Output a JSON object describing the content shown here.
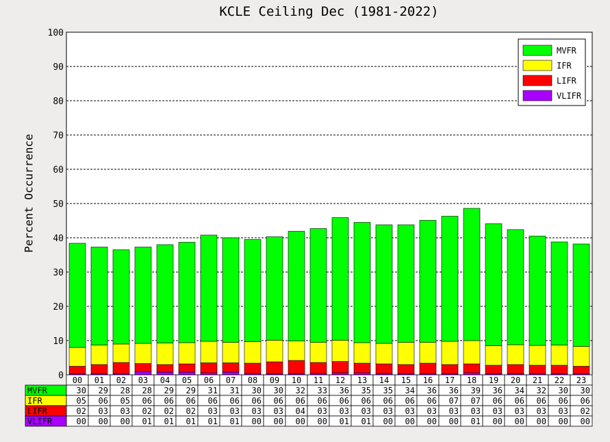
{
  "chart_data": {
    "type": "bar",
    "stacked": true,
    "title": "KCLE Ceiling Dec (1981-2022)",
    "xlabel": "",
    "ylabel": "Percent Occurrence",
    "ylim": [
      0,
      100
    ],
    "yticks": [
      0,
      10,
      20,
      30,
      40,
      50,
      60,
      70,
      80,
      90,
      100
    ],
    "grid": true,
    "legend_position": "top-right",
    "categories": [
      "00",
      "01",
      "02",
      "03",
      "04",
      "05",
      "06",
      "07",
      "08",
      "09",
      "10",
      "11",
      "12",
      "13",
      "14",
      "15",
      "16",
      "17",
      "18",
      "19",
      "20",
      "21",
      "22",
      "23"
    ],
    "series": [
      {
        "name": "VLIFR",
        "color": "#aa00ff",
        "values": [
          0.3,
          0.3,
          0.3,
          0.9,
          0.8,
          0.8,
          0.6,
          0.8,
          0.4,
          0.3,
          0.3,
          0.4,
          0.6,
          0.6,
          0.4,
          0.3,
          0.3,
          0.3,
          0.6,
          0.3,
          0.3,
          0.3,
          0.3,
          0.3
        ],
        "labels": [
          "00",
          "00",
          "00",
          "01",
          "01",
          "01",
          "01",
          "01",
          "00",
          "00",
          "00",
          "00",
          "01",
          "01",
          "00",
          "00",
          "00",
          "00",
          "01",
          "00",
          "00",
          "00",
          "00",
          "00"
        ]
      },
      {
        "name": "LIFR",
        "color": "#ff0000",
        "values": [
          2.2,
          2.7,
          3.3,
          2.4,
          2.2,
          2.4,
          2.9,
          2.7,
          3.0,
          3.5,
          3.9,
          3.2,
          3.3,
          2.8,
          2.8,
          2.7,
          3.1,
          2.7,
          2.6,
          2.5,
          2.7,
          2.5,
          2.5,
          2.2
        ],
        "labels": [
          "02",
          "03",
          "03",
          "02",
          "02",
          "02",
          "03",
          "03",
          "03",
          "03",
          "04",
          "03",
          "03",
          "03",
          "03",
          "03",
          "03",
          "03",
          "03",
          "03",
          "03",
          "03",
          "03",
          "02"
        ]
      },
      {
        "name": "IFR",
        "color": "#ffff00",
        "values": [
          5.5,
          5.7,
          5.4,
          5.9,
          6.3,
          6.2,
          6.3,
          6.0,
          6.3,
          6.3,
          5.7,
          5.9,
          6.2,
          6.0,
          6.0,
          6.5,
          6.1,
          6.8,
          6.8,
          5.7,
          5.8,
          5.8,
          5.9,
          5.8
        ],
        "labels": [
          "05",
          "06",
          "05",
          "06",
          "06",
          "06",
          "06",
          "06",
          "06",
          "06",
          "06",
          "06",
          "06",
          "06",
          "06",
          "06",
          "06",
          "07",
          "07",
          "06",
          "06",
          "06",
          "06",
          "06"
        ]
      },
      {
        "name": "MVFR",
        "color": "#00ff00",
        "values": [
          30.4,
          28.6,
          27.5,
          28.1,
          28.7,
          29.3,
          31.0,
          30.5,
          29.8,
          30.2,
          32.0,
          33.2,
          35.8,
          35.1,
          34.6,
          34.3,
          35.6,
          36.5,
          38.6,
          35.6,
          33.6,
          31.9,
          30.1,
          29.9
        ],
        "labels": [
          "30",
          "29",
          "28",
          "28",
          "29",
          "29",
          "31",
          "31",
          "30",
          "30",
          "32",
          "33",
          "36",
          "35",
          "35",
          "34",
          "36",
          "36",
          "39",
          "36",
          "34",
          "32",
          "30",
          "30"
        ]
      }
    ],
    "table_rows": [
      "MVFR",
      "IFR",
      "LIFR",
      "VLIFR"
    ]
  }
}
